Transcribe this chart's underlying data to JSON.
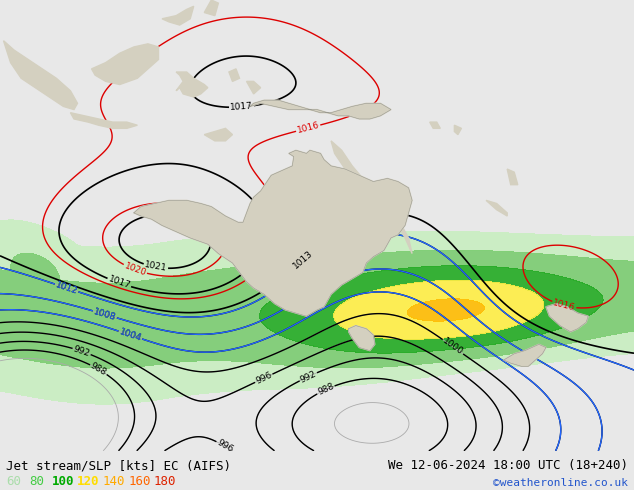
{
  "title_left": "Jet stream/SLP [kts] EC (AIFS)",
  "title_right": "We 12-06-2024 18:00 UTC (18+240)",
  "credit": "©weatheronline.co.uk",
  "legend_values": [
    "60",
    "80",
    "100",
    "120",
    "140",
    "160",
    "180"
  ],
  "legend_colors": [
    "#aaddaa",
    "#44cc44",
    "#00aa00",
    "#ffdd00",
    "#ffaa00",
    "#ff6600",
    "#dd2200"
  ],
  "background_color": "#e8e8e8",
  "ocean_color": "#e0e8f0",
  "land_color": "#d4d0c0",
  "figsize": [
    6.34,
    4.9
  ],
  "dpi": 100,
  "map_extent": [
    95,
    185,
    -60,
    12
  ],
  "jet_colors": [
    "#c8eec8",
    "#88dd88",
    "#44bb44",
    "#009900",
    "#ffee44",
    "#ffcc00",
    "#ffaa00",
    "#ff7700"
  ],
  "jet_levels": [
    40,
    60,
    80,
    100,
    110,
    120,
    140,
    160,
    200
  ],
  "slp_color_blue": "#2266ff",
  "slp_color_black": "#000000",
  "slp_color_red": "#dd0000",
  "slp_color_gray": "#aaaaaa",
  "title_fontsize": 9,
  "credit_fontsize": 8,
  "legend_fontsize": 9,
  "bottom_bar_color": "#c8ccd4"
}
